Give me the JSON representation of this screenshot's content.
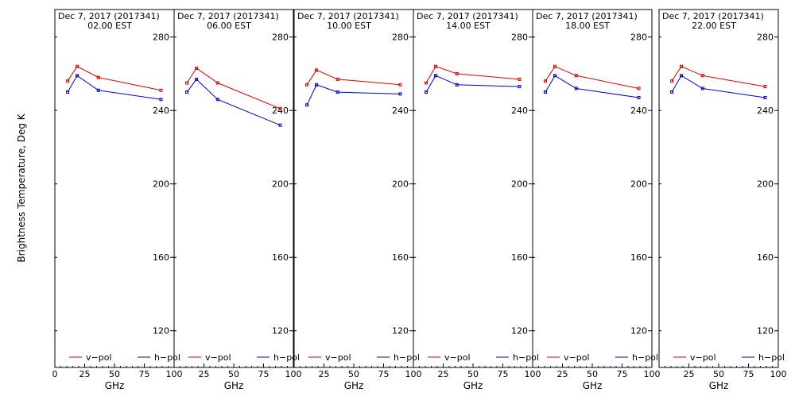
{
  "y_axis_label": "Brightness Temperature, Deg K",
  "colors": {
    "v_pol": "#dd0000",
    "h_pol": "#0000cc",
    "frame": "#000000",
    "background": "#ffffff"
  },
  "chart_data": [
    {
      "type": "line",
      "title_line1": "Dec  7, 2017 (2017341)",
      "title_line2": "02.00 EST",
      "xlabel": "GHz",
      "xlim": [
        0,
        100
      ],
      "ylim": [
        100,
        295
      ],
      "x_ticks": [
        0,
        25,
        50,
        75,
        100
      ],
      "x_tick_labels": [
        "0",
        "25",
        "50",
        "75",
        "100"
      ],
      "y_ticks": [
        120,
        160,
        200,
        240,
        280
      ],
      "y_tick_labels": [
        "120",
        "160",
        "200",
        "240",
        "280"
      ],
      "legend": "bottom",
      "series": [
        {
          "name": "v−pol",
          "color": "#dd0000",
          "x": [
            10.7,
            18.7,
            36.5,
            89
          ],
          "y": [
            256,
            264,
            258,
            251
          ]
        },
        {
          "name": "h−pol",
          "color": "#0000cc",
          "x": [
            10.7,
            18.7,
            36.5,
            89
          ],
          "y": [
            250,
            259,
            251,
            246
          ]
        }
      ]
    },
    {
      "type": "line",
      "title_line1": "Dec  7, 2017 (2017341)",
      "title_line2": "06.00 EST",
      "xlabel": "GHz",
      "xlim": [
        0,
        100
      ],
      "ylim": [
        100,
        295
      ],
      "x_ticks": [
        0,
        25,
        50,
        75,
        100
      ],
      "x_tick_labels": [
        "",
        "25",
        "50",
        "75",
        "100"
      ],
      "y_ticks": [
        120,
        160,
        200,
        240,
        280
      ],
      "y_tick_labels": [
        "120",
        "160",
        "200",
        "240",
        "280"
      ],
      "legend": "bottom",
      "series": [
        {
          "name": "v−pol",
          "color": "#dd0000",
          "x": [
            10.7,
            18.7,
            36.5,
            89
          ],
          "y": [
            255,
            263,
            255,
            241
          ]
        },
        {
          "name": "h−pol",
          "color": "#0000cc",
          "x": [
            10.7,
            18.7,
            36.5,
            89
          ],
          "y": [
            250,
            257,
            246,
            232
          ]
        }
      ]
    },
    {
      "type": "line",
      "title_line1": "Dec  7, 2017 (2017341)",
      "title_line2": "10.00 EST",
      "xlabel": "GHz",
      "xlim": [
        0,
        100
      ],
      "ylim": [
        100,
        295
      ],
      "x_ticks": [
        0,
        25,
        50,
        75,
        100
      ],
      "x_tick_labels": [
        "",
        "25",
        "50",
        "75",
        "100"
      ],
      "y_ticks": [
        120,
        160,
        200,
        240,
        280
      ],
      "y_tick_labels": [
        "120",
        "160",
        "200",
        "240",
        "280"
      ],
      "legend": "bottom",
      "series": [
        {
          "name": "v−pol",
          "color": "#dd0000",
          "x": [
            10.7,
            18.7,
            36.5,
            89
          ],
          "y": [
            254,
            262,
            257,
            254
          ]
        },
        {
          "name": "h−pol",
          "color": "#0000cc",
          "x": [
            10.7,
            18.7,
            36.5,
            89
          ],
          "y": [
            243,
            254,
            250,
            249
          ]
        }
      ]
    },
    {
      "type": "line",
      "title_line1": "Dec  7, 2017 (2017341)",
      "title_line2": "14.00 EST",
      "xlabel": "GHz",
      "xlim": [
        0,
        100
      ],
      "ylim": [
        100,
        295
      ],
      "x_ticks": [
        0,
        25,
        50,
        75,
        100
      ],
      "x_tick_labels": [
        "",
        "25",
        "50",
        "75",
        "100"
      ],
      "y_ticks": [
        120,
        160,
        200,
        240,
        280
      ],
      "y_tick_labels": [
        "120",
        "160",
        "200",
        "240",
        "280"
      ],
      "legend": "bottom",
      "series": [
        {
          "name": "v−pol",
          "color": "#dd0000",
          "x": [
            10.7,
            18.7,
            36.5,
            89
          ],
          "y": [
            255,
            264,
            260,
            257
          ]
        },
        {
          "name": "h−pol",
          "color": "#0000cc",
          "x": [
            10.7,
            18.7,
            36.5,
            89
          ],
          "y": [
            250,
            259,
            254,
            253
          ]
        }
      ]
    },
    {
      "type": "line",
      "title_line1": "Dec  7, 2017 (2017341)",
      "title_line2": "18.00 EST",
      "xlabel": "GHz",
      "xlim": [
        0,
        100
      ],
      "ylim": [
        100,
        295
      ],
      "x_ticks": [
        0,
        25,
        50,
        75,
        100
      ],
      "x_tick_labels": [
        "",
        "25",
        "50",
        "75",
        "100"
      ],
      "y_ticks": [
        120,
        160,
        200,
        240,
        280
      ],
      "y_tick_labels": [
        "120",
        "160",
        "200",
        "240",
        "280"
      ],
      "legend": "bottom",
      "series": [
        {
          "name": "v−pol",
          "color": "#dd0000",
          "x": [
            10.7,
            18.7,
            36.5,
            89
          ],
          "y": [
            256,
            264,
            259,
            252
          ]
        },
        {
          "name": "h−pol",
          "color": "#0000cc",
          "x": [
            10.7,
            18.7,
            36.5,
            89
          ],
          "y": [
            250,
            259,
            252,
            247
          ]
        }
      ]
    },
    {
      "type": "line",
      "title_line1": "Dec  7, 2017 (2017341)",
      "title_line2": "22.00 EST",
      "xlabel": "GHz",
      "xlim": [
        0,
        100
      ],
      "ylim": [
        100,
        295
      ],
      "x_ticks": [
        0,
        25,
        50,
        75,
        100
      ],
      "x_tick_labels": [
        "",
        "25",
        "50",
        "75",
        "100"
      ],
      "y_ticks": [
        120,
        160,
        200,
        240,
        280
      ],
      "y_tick_labels": [
        "120",
        "160",
        "200",
        "240",
        "280"
      ],
      "legend": "bottom",
      "series": [
        {
          "name": "v−pol",
          "color": "#dd0000",
          "x": [
            10.7,
            18.7,
            36.5,
            89
          ],
          "y": [
            256,
            264,
            259,
            253
          ]
        },
        {
          "name": "h−pol",
          "color": "#0000cc",
          "x": [
            10.7,
            18.7,
            36.5,
            89
          ],
          "y": [
            250,
            259,
            252,
            247
          ]
        }
      ]
    }
  ]
}
